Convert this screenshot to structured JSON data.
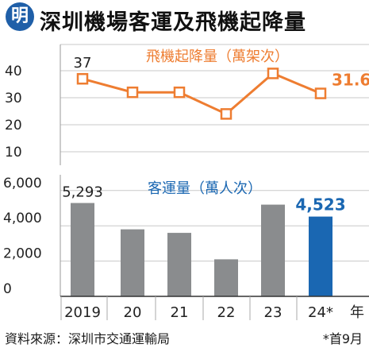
{
  "header": {
    "logo_text": "明",
    "title": "深圳機場客運及飛機起降量"
  },
  "footer": {
    "source": "資料來源：深圳市交通運輸局",
    "note": "*首9月"
  },
  "colors": {
    "line": "#ee7d31",
    "bar": "#8a8c8e",
    "bar_highlight": "#1a67b2",
    "title_blue": "#1a67b2",
    "logo": "#1f5fa8"
  },
  "chart_data": [
    {
      "type": "line",
      "title": "飛機起降量（萬架次）",
      "x": [
        "2019",
        "20",
        "21",
        "22",
        "23",
        "24*"
      ],
      "series": [
        {
          "values": [
            37,
            32,
            32,
            24,
            39,
            31.6
          ]
        }
      ],
      "data_labels": [
        "37",
        "",
        "",
        "",
        "",
        "31.6"
      ],
      "ylim": [
        0,
        45
      ],
      "yticks": [
        "10",
        "20",
        "30",
        "40"
      ]
    },
    {
      "type": "bar",
      "title": "客運量（萬人次）",
      "categories": [
        "2019",
        "20",
        "21",
        "22",
        "23",
        "24*"
      ],
      "values": [
        5293,
        3800,
        3600,
        2100,
        5200,
        4523
      ],
      "data_labels": [
        "5,293",
        "",
        "",
        "",
        "",
        "4,523"
      ],
      "highlight_index": 5,
      "ylim": [
        0,
        7000
      ],
      "yticks": [
        "0",
        "2,000",
        "4,000",
        "6,000"
      ],
      "xlabel_suffix": "年"
    }
  ]
}
